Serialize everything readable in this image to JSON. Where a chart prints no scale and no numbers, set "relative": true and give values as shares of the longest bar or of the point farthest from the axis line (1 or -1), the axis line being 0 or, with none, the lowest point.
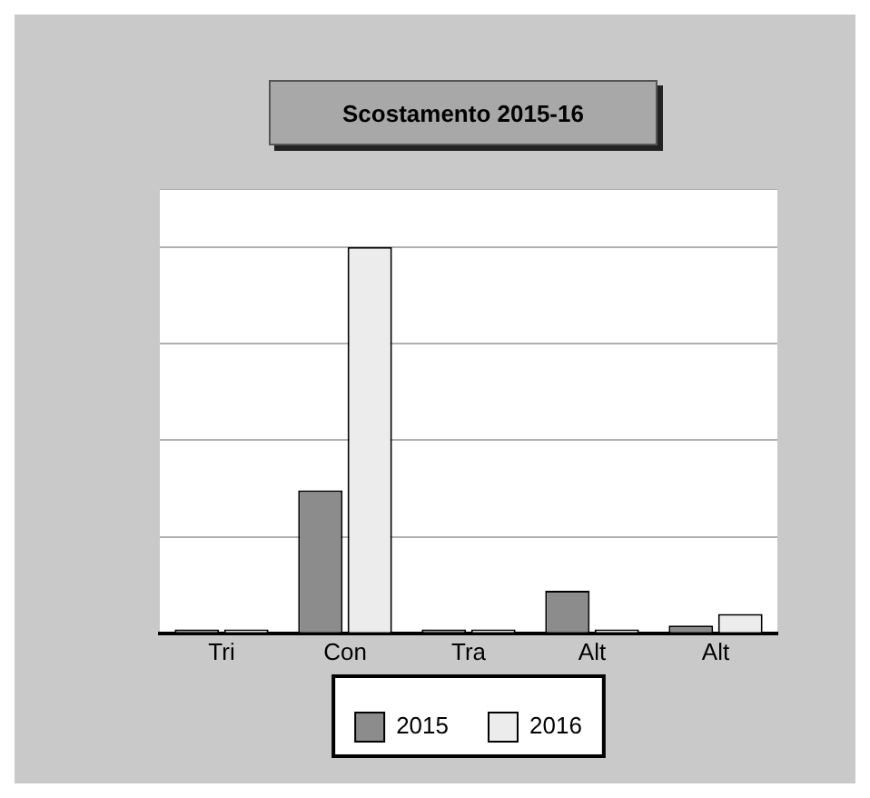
{
  "chart_data": {
    "type": "bar",
    "title": "Scostamento 2015-16",
    "relative": true,
    "grid": "y",
    "legend": "bottom",
    "categories": [
      "Tri",
      "Con",
      "Tra",
      "Alt",
      "Alt"
    ],
    "series": [
      {
        "name": "2015",
        "color": "#8c8c8c",
        "values": [
          0.01,
          0.37,
          0.01,
          0.11,
          0.02
        ]
      },
      {
        "name": "2016",
        "color": "#ececec",
        "values": [
          0.01,
          1,
          0.01,
          0.01,
          0.05
        ]
      }
    ]
  }
}
